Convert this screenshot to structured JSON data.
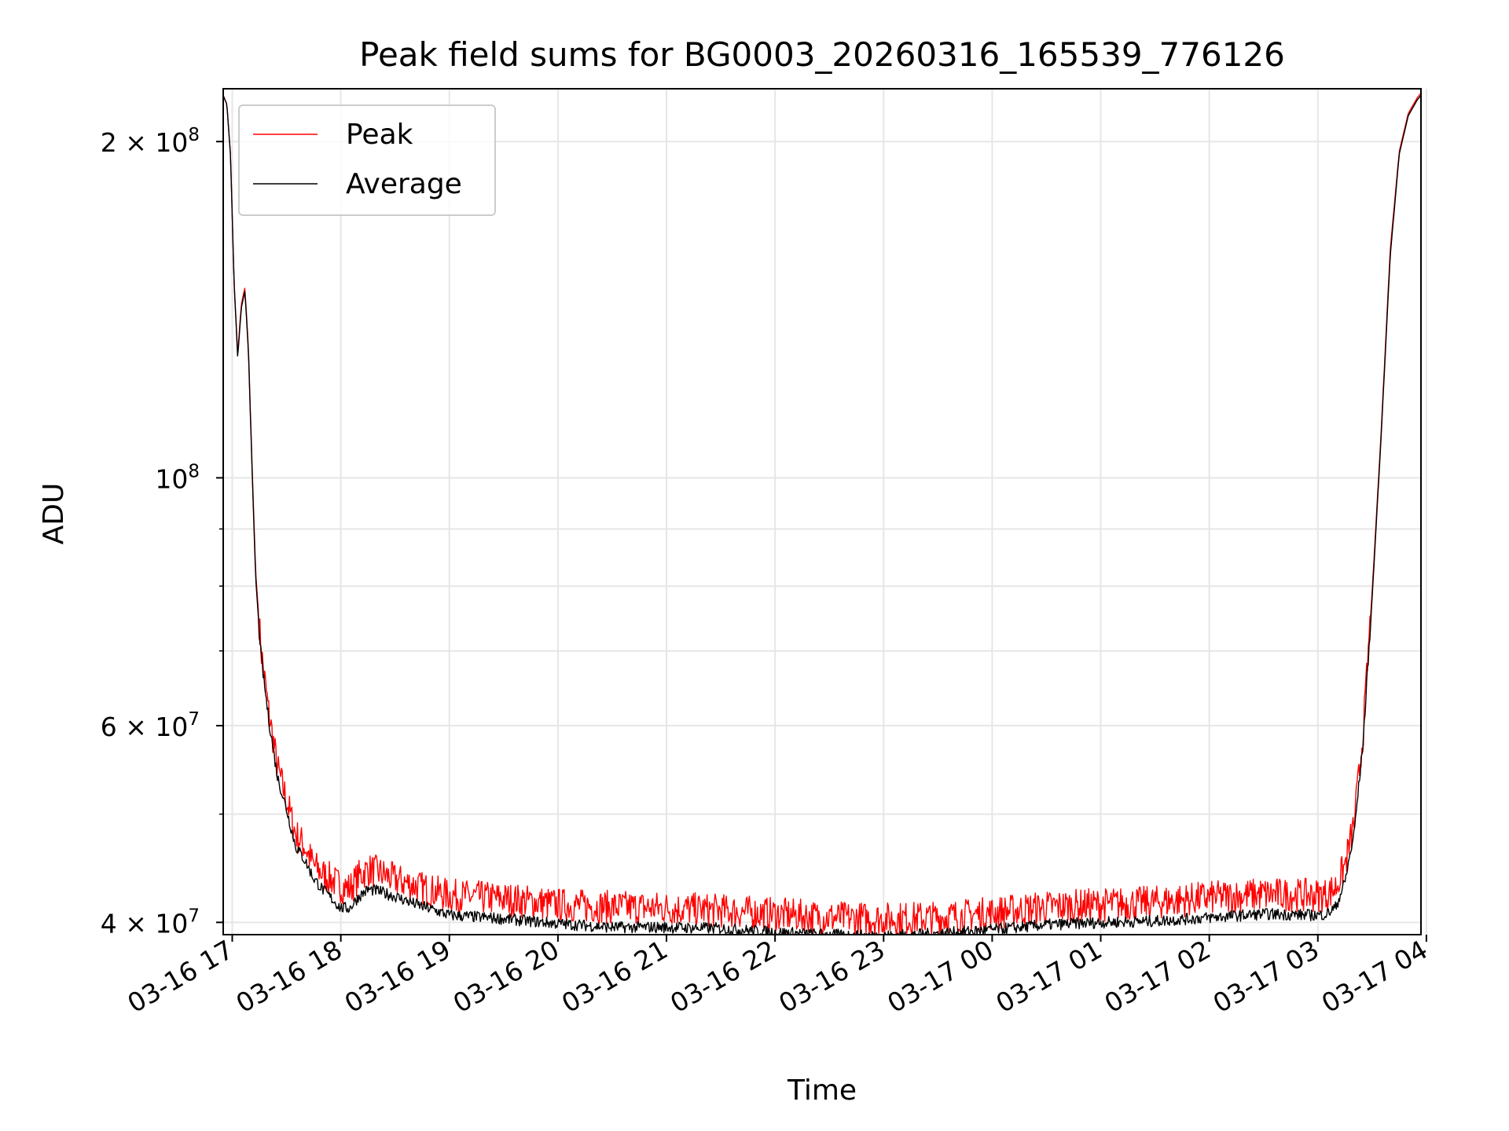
{
  "chart_data": {
    "type": "line",
    "title": "Peak field sums for BG0003_20260316_165539_776126",
    "xlabel": "Time",
    "ylabel": "ADU",
    "yscale": "log",
    "xlim": [
      "2026-03-16 16:55",
      "2026-03-17 03:57"
    ],
    "ylim": [
      39000000,
      223000000
    ],
    "x_ticks": [
      "03-16 17",
      "03-16 18",
      "03-16 19",
      "03-16 20",
      "03-16 21",
      "03-16 22",
      "03-16 23",
      "03-17 00",
      "03-17 01",
      "03-17 02",
      "03-17 03",
      "03-17 04"
    ],
    "y_ticks": [
      {
        "value": 40000000,
        "label_base": "4 × 10",
        "label_exp": "7"
      },
      {
        "value": 60000000,
        "label_base": "6 × 10",
        "label_exp": "7"
      },
      {
        "value": 100000000,
        "label_base": "10",
        "label_exp": "8"
      },
      {
        "value": 200000000,
        "label_base": "2 × 10",
        "label_exp": "8"
      }
    ],
    "y_minor_ticks": [
      50000000,
      70000000,
      80000000,
      90000000
    ],
    "grid": true,
    "legend_position": "top-left",
    "series": [
      {
        "name": "Peak",
        "color": "#ff0000",
        "noise_fraction": 0.035,
        "x": [
          "2026-03-16 16:55",
          "2026-03-16 16:57",
          "2026-03-16 16:59",
          "2026-03-16 17:01",
          "2026-03-16 17:03",
          "2026-03-16 17:05",
          "2026-03-16 17:07",
          "2026-03-16 17:09",
          "2026-03-16 17:11",
          "2026-03-16 17:13",
          "2026-03-16 17:16",
          "2026-03-16 17:20",
          "2026-03-16 17:25",
          "2026-03-16 17:30",
          "2026-03-16 17:35",
          "2026-03-16 17:40",
          "2026-03-16 17:45",
          "2026-03-16 17:50",
          "2026-03-16 17:55",
          "2026-03-16 18:00",
          "2026-03-16 18:05",
          "2026-03-16 18:10",
          "2026-03-16 18:15",
          "2026-03-16 18:20",
          "2026-03-16 18:30",
          "2026-03-16 18:40",
          "2026-03-16 18:50",
          "2026-03-16 19:00",
          "2026-03-16 19:30",
          "2026-03-16 20:00",
          "2026-03-16 20:30",
          "2026-03-16 21:00",
          "2026-03-16 21:30",
          "2026-03-16 22:00",
          "2026-03-16 22:30",
          "2026-03-16 23:00",
          "2026-03-16 23:30",
          "2026-03-17 00:00",
          "2026-03-17 00:30",
          "2026-03-17 01:00",
          "2026-03-17 01:30",
          "2026-03-17 02:00",
          "2026-03-17 02:30",
          "2026-03-17 03:00",
          "2026-03-17 03:05",
          "2026-03-17 03:10",
          "2026-03-17 03:15",
          "2026-03-17 03:20",
          "2026-03-17 03:25",
          "2026-03-17 03:30",
          "2026-03-17 03:35",
          "2026-03-17 03:40",
          "2026-03-17 03:45",
          "2026-03-17 03:50",
          "2026-03-17 03:55",
          "2026-03-17 03:57"
        ],
        "y": [
          220000000,
          216000000,
          195000000,
          150000000,
          129000000,
          143000000,
          148000000,
          130000000,
          102000000,
          82000000,
          70000000,
          62000000,
          55000000,
          51500000,
          48000000,
          46800000,
          45000000,
          44200000,
          43700000,
          43100000,
          42900000,
          44000000,
          44600000,
          44400000,
          43700000,
          43200000,
          42700000,
          42300000,
          42000000,
          41500000,
          41300000,
          41200000,
          41000000,
          40700000,
          40400000,
          40300000,
          40400000,
          40800000,
          41300000,
          41500000,
          41700000,
          42100000,
          42400000,
          42300000,
          42400000,
          43000000,
          45000000,
          49000000,
          59000000,
          79000000,
          110000000,
          160000000,
          196000000,
          212000000,
          219000000,
          221000000
        ]
      },
      {
        "name": "Average",
        "color": "#000000",
        "noise_fraction": 0.012,
        "x": [
          "2026-03-16 16:55",
          "2026-03-16 16:57",
          "2026-03-16 16:59",
          "2026-03-16 17:01",
          "2026-03-16 17:03",
          "2026-03-16 17:05",
          "2026-03-16 17:07",
          "2026-03-16 17:09",
          "2026-03-16 17:11",
          "2026-03-16 17:13",
          "2026-03-16 17:16",
          "2026-03-16 17:20",
          "2026-03-16 17:25",
          "2026-03-16 17:30",
          "2026-03-16 17:35",
          "2026-03-16 17:40",
          "2026-03-16 17:45",
          "2026-03-16 17:50",
          "2026-03-16 17:55",
          "2026-03-16 18:00",
          "2026-03-16 18:05",
          "2026-03-16 18:10",
          "2026-03-16 18:15",
          "2026-03-16 18:20",
          "2026-03-16 18:30",
          "2026-03-16 18:40",
          "2026-03-16 18:50",
          "2026-03-16 19:00",
          "2026-03-16 19:30",
          "2026-03-16 20:00",
          "2026-03-16 20:30",
          "2026-03-16 21:00",
          "2026-03-16 21:30",
          "2026-03-16 22:00",
          "2026-03-16 22:30",
          "2026-03-16 23:00",
          "2026-03-16 23:30",
          "2026-03-17 00:00",
          "2026-03-17 00:30",
          "2026-03-17 01:00",
          "2026-03-17 01:30",
          "2026-03-17 02:00",
          "2026-03-17 02:30",
          "2026-03-17 03:00",
          "2026-03-17 03:05",
          "2026-03-17 03:10",
          "2026-03-17 03:15",
          "2026-03-17 03:20",
          "2026-03-17 03:25",
          "2026-03-17 03:30",
          "2026-03-17 03:35",
          "2026-03-17 03:40",
          "2026-03-17 03:45",
          "2026-03-17 03:50",
          "2026-03-17 03:55",
          "2026-03-17 03:57"
        ],
        "y": [
          220000000,
          216000000,
          195000000,
          150000000,
          128000000,
          142000000,
          147000000,
          129000000,
          101000000,
          81000000,
          69000000,
          61000000,
          54000000,
          50500000,
          46800000,
          45500000,
          43800000,
          42800000,
          42000000,
          41200000,
          41200000,
          42200000,
          42800000,
          42700000,
          42200000,
          41600000,
          41100000,
          40600000,
          40300000,
          39900000,
          39600000,
          39600000,
          39500000,
          39200000,
          39000000,
          38900000,
          39100000,
          39400000,
          39800000,
          40000000,
          40100000,
          40400000,
          40700000,
          40600000,
          40700000,
          41300000,
          43500000,
          48000000,
          58000000,
          78000000,
          109000000,
          158000000,
          195000000,
          211000000,
          218000000,
          220000000
        ]
      }
    ]
  }
}
